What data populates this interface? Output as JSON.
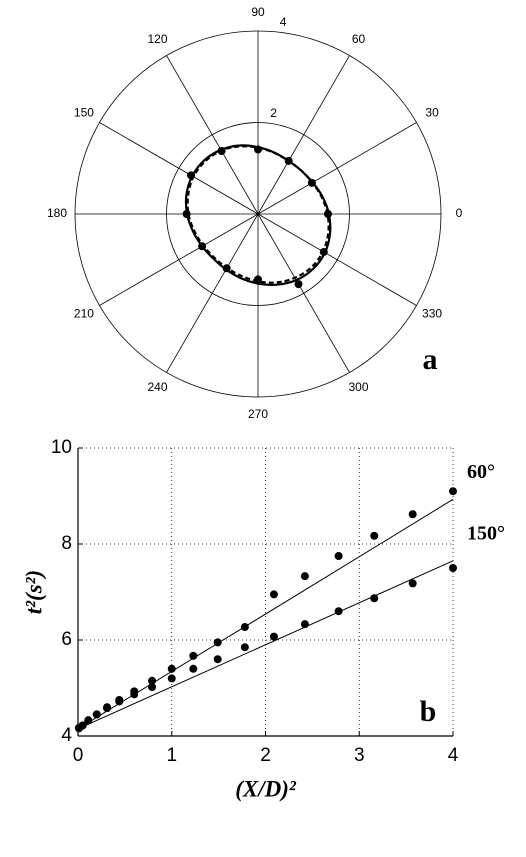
{
  "chart_data": [
    {
      "type": "polar",
      "rlim": [
        0,
        4
      ],
      "rticks": [
        2,
        4
      ],
      "thetaticks": [
        0,
        30,
        60,
        90,
        120,
        150,
        180,
        210,
        240,
        270,
        300,
        330
      ],
      "annotation": "a",
      "series": [
        {
          "style": "markers",
          "color": "#000000",
          "theta": [
            0,
            30,
            60,
            90,
            120,
            150,
            180,
            210,
            240,
            270,
            300,
            330
          ],
          "r": [
            1.53,
            1.36,
            1.34,
            1.41,
            1.59,
            1.69,
            1.56,
            1.41,
            1.37,
            1.43,
            1.77,
            1.66
          ]
        },
        {
          "style": "solid",
          "color": "#000000",
          "theta": [
            0,
            15,
            30,
            45,
            60,
            75,
            90,
            105,
            120,
            135,
            150,
            165,
            180,
            195,
            210,
            225,
            240,
            255,
            270,
            285,
            300,
            315,
            330,
            345
          ],
          "r": [
            1.55,
            1.46,
            1.38,
            1.34,
            1.34,
            1.39,
            1.46,
            1.55,
            1.62,
            1.66,
            1.66,
            1.62,
            1.55,
            1.47,
            1.41,
            1.38,
            1.4,
            1.45,
            1.52,
            1.6,
            1.67,
            1.7,
            1.69,
            1.63
          ]
        },
        {
          "style": "dashed",
          "color": "#000000",
          "theta": [
            0,
            15,
            30,
            45,
            60,
            75,
            90,
            105,
            120,
            135,
            150,
            165,
            180,
            195,
            210,
            225,
            240,
            255,
            270,
            285,
            300,
            315,
            330,
            345
          ],
          "r": [
            1.52,
            1.44,
            1.37,
            1.34,
            1.34,
            1.38,
            1.45,
            1.53,
            1.6,
            1.63,
            1.63,
            1.58,
            1.52,
            1.44,
            1.38,
            1.35,
            1.36,
            1.4,
            1.47,
            1.55,
            1.61,
            1.65,
            1.64,
            1.59
          ]
        }
      ]
    },
    {
      "type": "scatter",
      "xlabel": "(X/D)²",
      "ylabel": "t²(s²)",
      "annotation": "b",
      "xlim": [
        0,
        4
      ],
      "ylim": [
        4,
        10
      ],
      "xticks": [
        0,
        1,
        2,
        3,
        4
      ],
      "yticks": [
        4,
        6,
        8,
        10
      ],
      "grid": true,
      "x": [
        0.01,
        0.05,
        0.11,
        0.2,
        0.31,
        0.44,
        0.6,
        0.79,
        1,
        1.23,
        1.49,
        1.78,
        2.09,
        2.42,
        2.78,
        3.16,
        3.57,
        4
      ],
      "series": [
        {
          "name": "60°",
          "color": "#000000",
          "values": [
            4.17,
            4.22,
            4.32,
            4.45,
            4.6,
            4.75,
            4.93,
            5.15,
            5.4,
            5.67,
            5.95,
            6.27,
            6.95,
            7.33,
            7.75,
            8.17,
            8.62,
            9.1
          ],
          "fit_x": [
            0,
            4
          ],
          "fit": [
            4.15,
            8.93
          ]
        },
        {
          "name": "150°",
          "color": "#000000",
          "values": [
            4.16,
            4.22,
            4.33,
            4.45,
            4.58,
            4.72,
            4.87,
            5.02,
            5.2,
            5.4,
            5.6,
            5.85,
            6.07,
            6.33,
            6.6,
            6.87,
            7.18,
            7.5
          ],
          "fit_x": [
            0,
            4
          ],
          "fit": [
            4.15,
            7.65
          ]
        }
      ]
    }
  ]
}
